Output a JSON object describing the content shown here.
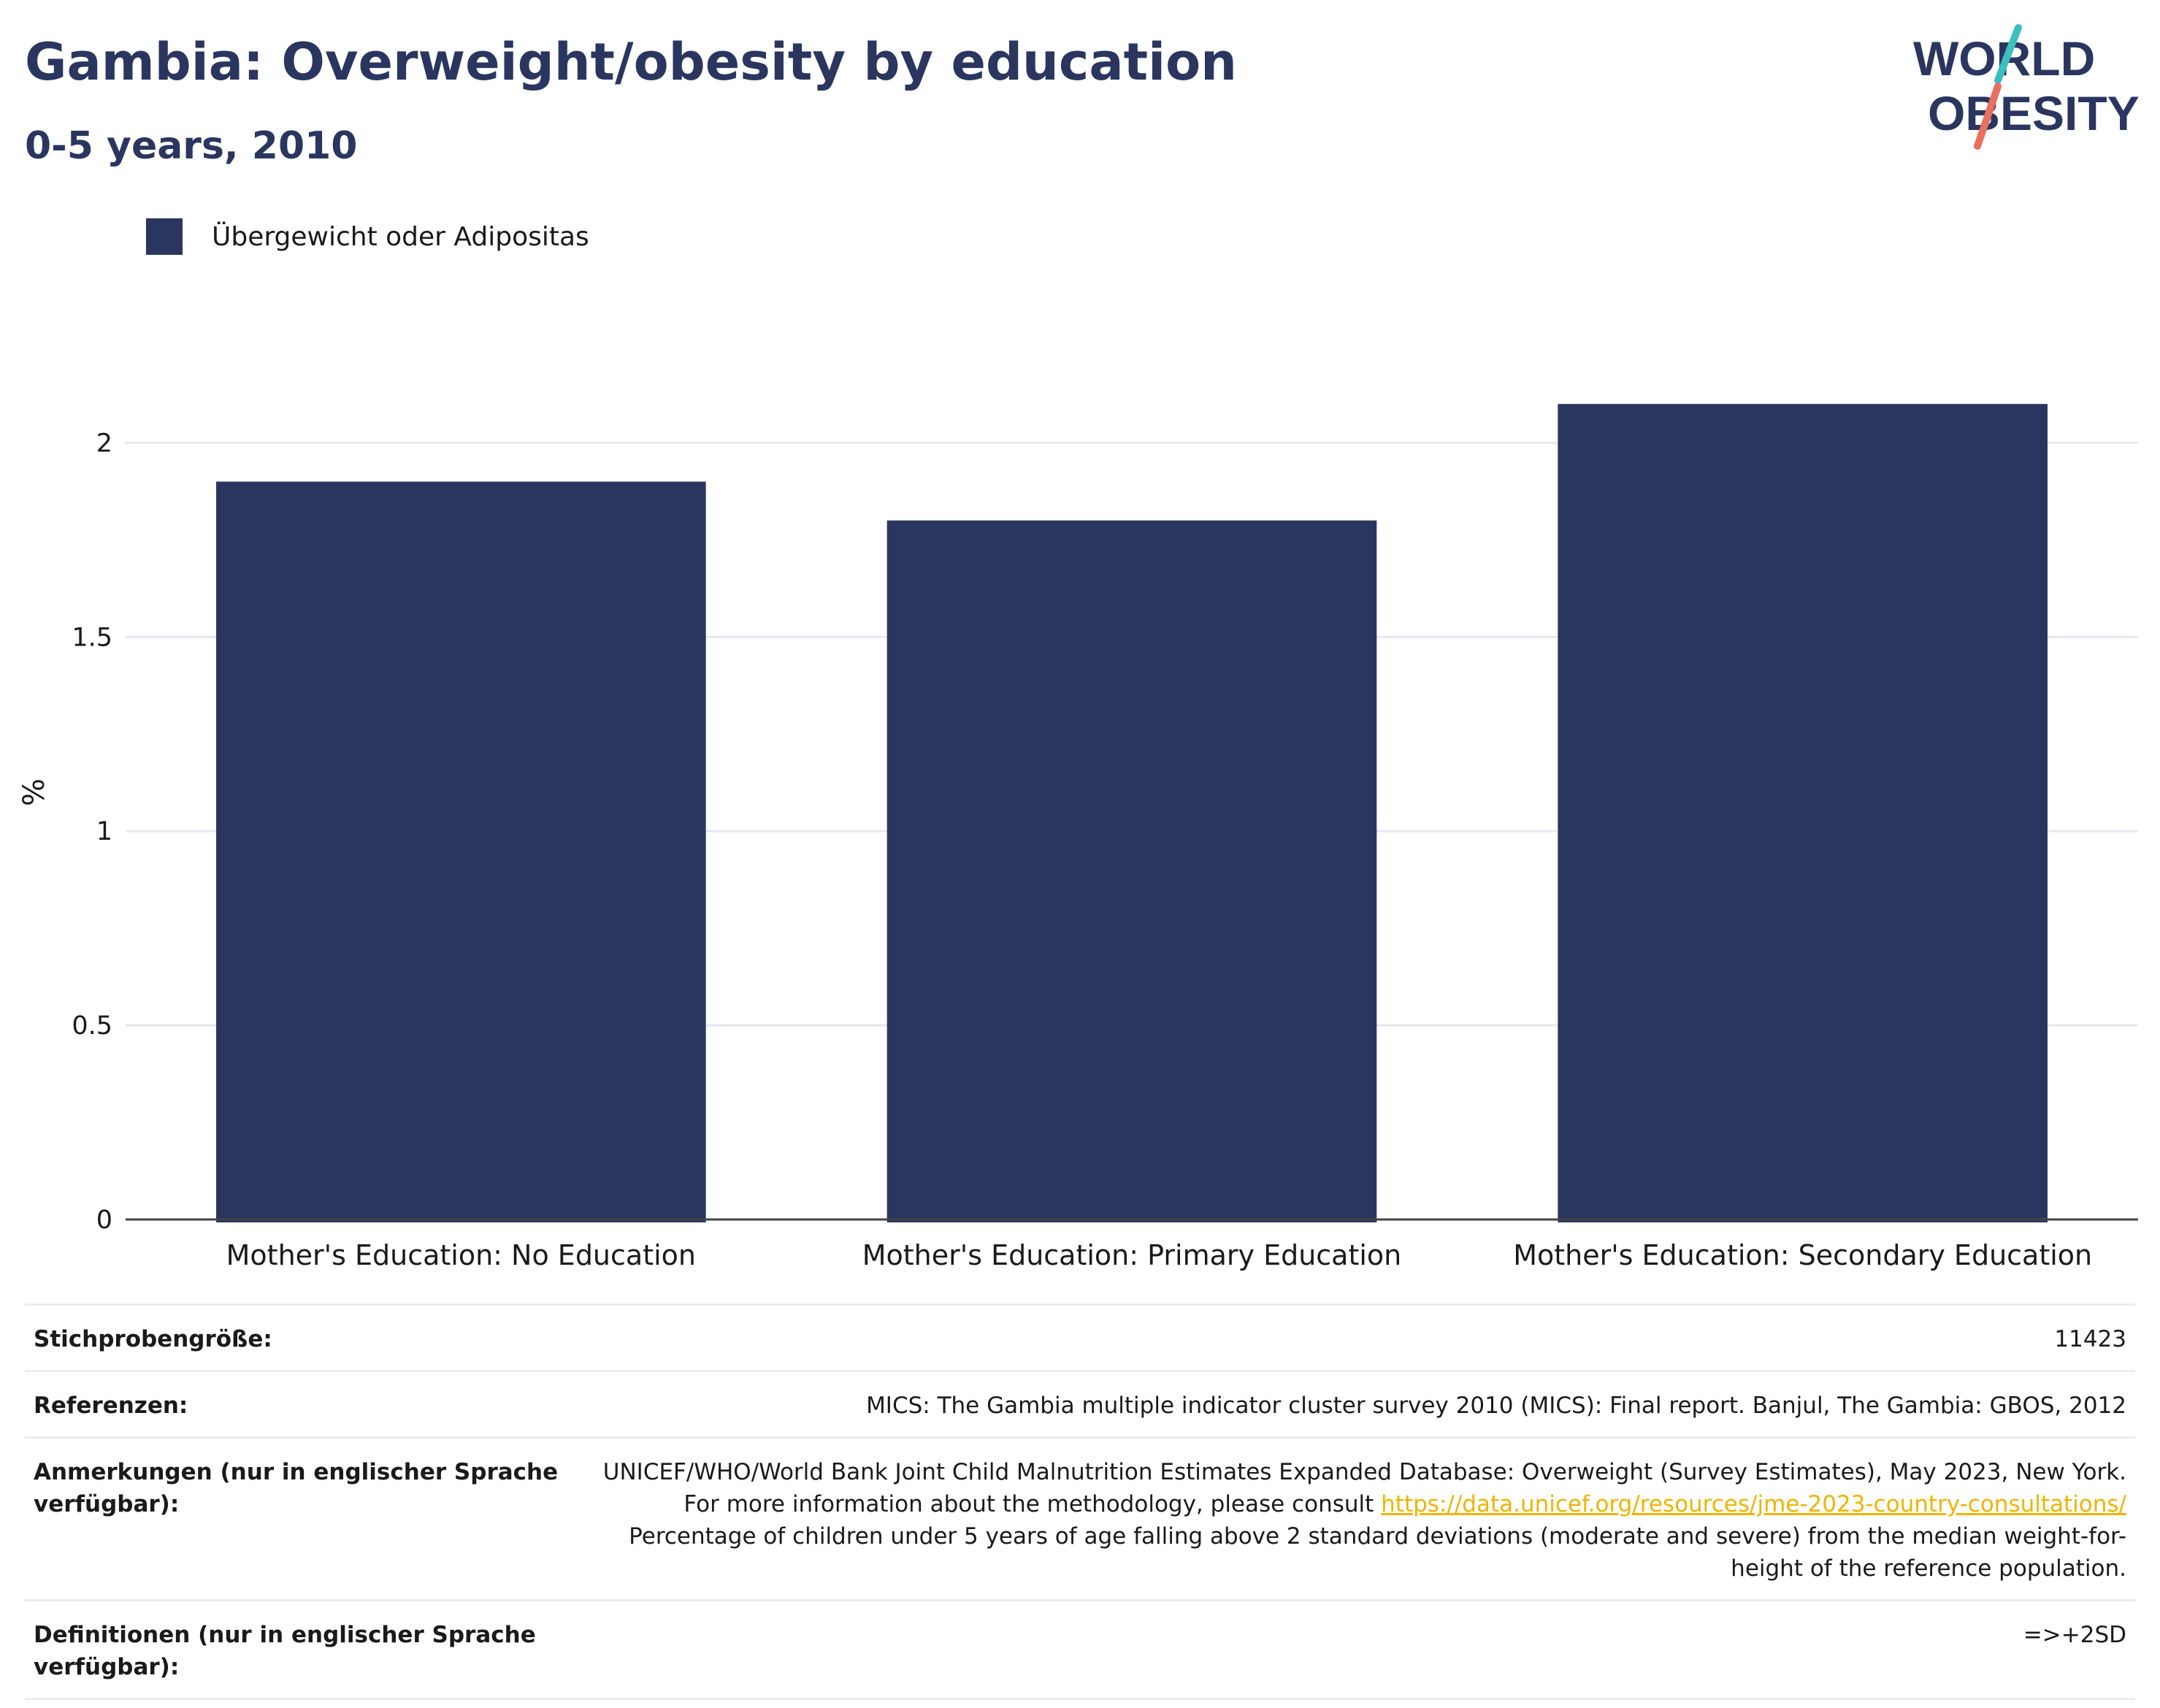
{
  "header": {
    "title": "Gambia: Overweight/obesity by education",
    "subtitle": "0-5 years, 2010"
  },
  "logo": {
    "line1": "WORLD",
    "line2": "OBESITY",
    "colors": {
      "text": "#2a365f",
      "slash_top": "#3bbfbf",
      "slash_bottom": "#e8705f"
    }
  },
  "legend": {
    "label": "Übergewicht oder Adipositas",
    "color": "#2a365f"
  },
  "chart_data": {
    "type": "bar",
    "categories": [
      "Mother's Education: No Education",
      "Mother's Education: Primary Education",
      "Mother's Education: Secondary Education"
    ],
    "series": [
      {
        "name": "Übergewicht oder Adipositas",
        "values": [
          1.9,
          1.8,
          2.1
        ],
        "color": "#2a365f"
      }
    ],
    "ylabel": "%",
    "ylim": [
      0,
      2.2
    ],
    "yticks": [
      0,
      0.5,
      1,
      1.5,
      2
    ],
    "ytick_labels": [
      "0",
      "0.5",
      "1",
      "1.5",
      "2"
    ],
    "grid": true,
    "legend_position": "top-left"
  },
  "meta": {
    "rows": [
      {
        "label": "Stichprobengröße:",
        "value": "11423"
      },
      {
        "label": "Referenzen:",
        "value": "MICS: The Gambia multiple indicator cluster survey 2010 (MICS): Final report. Banjul, The Gambia: GBOS, 2012"
      },
      {
        "label": "Anmerkungen (nur in englischer Sprache verfügbar):",
        "value_before": "UNICEF/WHO/World Bank Joint Child Malnutrition Estimates Expanded Database: Overweight (Survey Estimates), May 2023, New York. For more information about the methodology, please consult ",
        "link": "https://data.unicef.org/resources/jme-2023-country-consultations/",
        "value_after": " Percentage of children under 5 years of age falling above 2 standard deviations (moderate and severe) from the median weight-for-height of the reference population."
      },
      {
        "label": "Definitionen (nur in englischer Sprache verfügbar):",
        "value": "=>+2SD"
      }
    ]
  }
}
